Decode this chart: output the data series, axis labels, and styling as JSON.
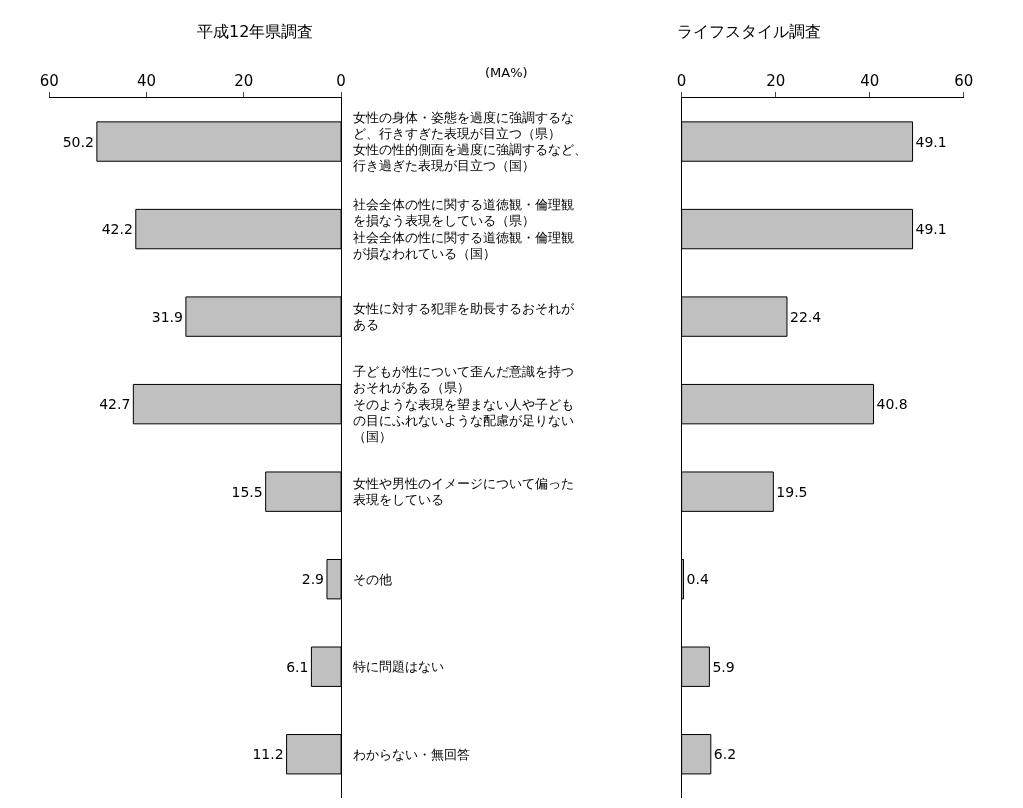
{
  "chart_data": [
    {
      "type": "bar",
      "orientation": "horizontal",
      "title": "平成12年県調査",
      "annotations": [
        "(MA%)"
      ],
      "categories": [
        "女性の身体・姿態を過度に強調するなど、行きすぎた表現が目立つ（県）女性の性的側面を過度に強調するなど、行き過ぎた表現が目立つ（国）",
        "社会全体の性に関する道徳観・倫理観を損なう表現をしている（県）社会全体の性に関する道徳観・倫理観が損なわれている（国）",
        "女性に対する犯罪を助長するおそれがある",
        "子どもが性について歪んだ意識を持つおそれがある（県）そのような表現を望まない人や子どもの目にふれないような配慮が足りない（国）",
        "女性や男性のイメージについて偏った表現をしている",
        "その他",
        "特に問題はない",
        "わからない・無回答"
      ],
      "values": [
        50.2,
        42.2,
        31.9,
        42.7,
        15.5,
        2.9,
        6.1,
        11.2
      ],
      "color": "#c0c0c0",
      "xlim": [
        60,
        0
      ],
      "xticks": [
        60,
        40,
        20,
        0
      ],
      "data_labels": true
    },
    {
      "type": "bar",
      "orientation": "horizontal",
      "title": "ライフスタイル調査",
      "categories": [
        "女性の身体・姿態を過度に強調するなど、行きすぎた表現が目立つ（県）女性の性的側面を過度に強調するなど、行き過ぎた表現が目立つ（国）",
        "社会全体の性に関する道徳観・倫理観を損なう表現をしている（県）社会全体の性に関する道徳観・倫理観が損なわれている（国）",
        "女性に対する犯罪を助長するおそれがある",
        "子どもが性について歪んだ意識を持つおそれがある（県）そのような表現を望まない人や子どもの目にふれないような配慮が足りない（国）",
        "女性や男性のイメージについて偏った表現をしている",
        "その他",
        "特に問題はない",
        "わからない・無回答"
      ],
      "values": [
        49.1,
        49.1,
        22.4,
        40.8,
        19.5,
        0.4,
        5.9,
        6.2
      ],
      "color": "#c0c0c0",
      "xlim": [
        0,
        60
      ],
      "xticks": [
        0,
        20,
        40,
        60
      ],
      "data_labels": true,
      "tick_labels": "x"
    }
  ]
}
